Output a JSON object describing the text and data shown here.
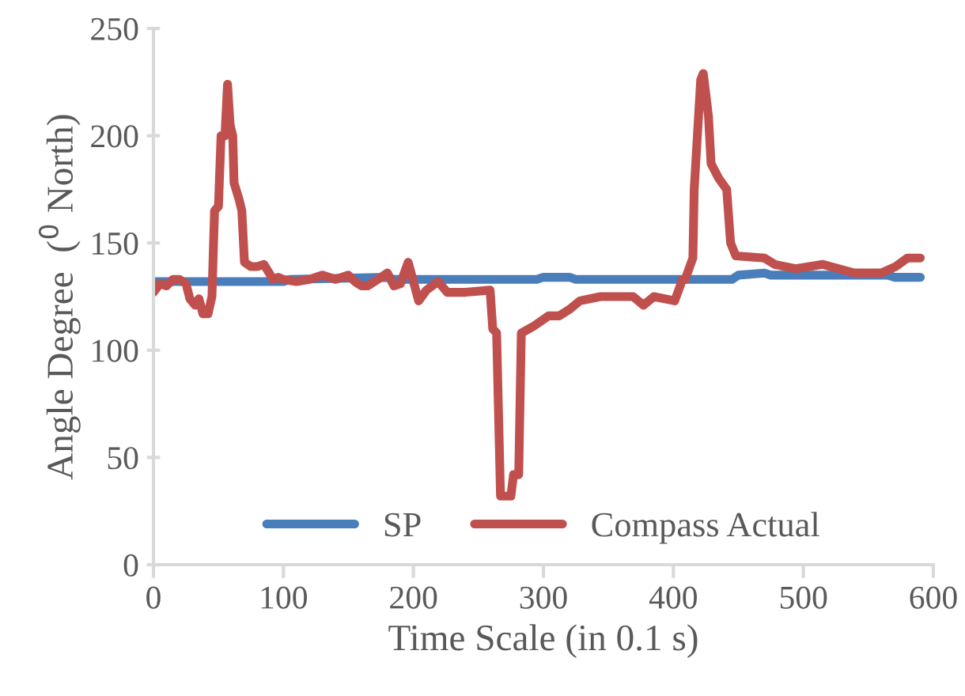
{
  "chart_data": {
    "type": "line",
    "xlabel": "Time Scale (in 0.1 s)",
    "ylabel": "Angle Degree  ($^{0}$ North)",
    "xlim": [
      0,
      600
    ],
    "xticks": [
      0,
      100,
      200,
      300,
      400,
      500,
      600
    ],
    "ylim": [
      0,
      250
    ],
    "yticks": [
      0,
      50,
      100,
      150,
      200,
      250
    ],
    "grid": false,
    "legend": "bottom",
    "line_style": "solid",
    "series": [
      {
        "name": "SP",
        "color": "#4a7ebb",
        "x": [
          0,
          100,
          105,
          180,
          185,
          295,
          300,
          320,
          325,
          445,
          450,
          470,
          475,
          565,
          570,
          590
        ],
        "values": [
          132,
          132,
          133,
          134,
          133,
          133,
          134,
          134,
          133,
          133,
          135,
          136,
          135,
          135,
          134,
          134
        ]
      },
      {
        "name": "Compass Actual",
        "color": "#c0504d",
        "x": [
          0,
          5,
          10,
          15,
          20,
          25,
          28,
          32,
          35,
          38,
          42,
          45,
          47,
          50,
          52,
          55,
          57,
          59,
          61,
          62,
          64,
          66,
          68,
          70,
          75,
          80,
          85,
          88,
          92,
          96,
          100,
          110,
          120,
          130,
          140,
          150,
          155,
          160,
          165,
          175,
          180,
          185,
          190,
          196,
          204,
          210,
          219,
          226,
          240,
          259,
          261,
          264,
          267,
          275,
          277,
          281,
          283,
          292,
          304,
          312,
          320,
          328,
          344,
          369,
          377,
          385,
          401,
          407,
          409,
          415,
          416,
          421,
          423,
          427,
          429,
          435,
          441,
          444,
          448,
          470,
          478,
          494,
          515,
          539,
          560,
          571,
          580,
          590
        ],
        "values": [
          127,
          131,
          130,
          133,
          133,
          131,
          124,
          121,
          124,
          117,
          117,
          125,
          165,
          167,
          200,
          200,
          224,
          205,
          200,
          178,
          174,
          170,
          165,
          141,
          139,
          139,
          140,
          137,
          133,
          134,
          133,
          132,
          133,
          135,
          133,
          135,
          132,
          130,
          130,
          134,
          136,
          130,
          131,
          141,
          123,
          128,
          132,
          127,
          127,
          128,
          110,
          108,
          32,
          32,
          42,
          42,
          108,
          111,
          116,
          116,
          119,
          123,
          125,
          125,
          121,
          125,
          123,
          133,
          133,
          143,
          175,
          226,
          229,
          209,
          187,
          180,
          175,
          150,
          144,
          143,
          140,
          138,
          140,
          136,
          136,
          139,
          143,
          143
        ]
      }
    ]
  }
}
